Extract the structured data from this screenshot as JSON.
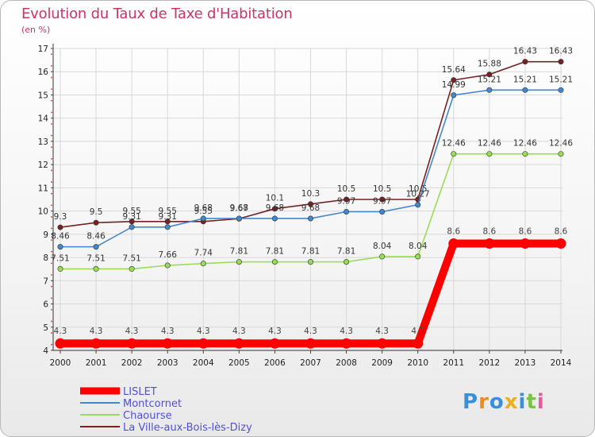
{
  "title": "Evolution du Taux de Taxe d'Habitation",
  "unit": "(en %)",
  "logo": "Proxiti",
  "chart_data": {
    "type": "line",
    "x": [
      "2000",
      "2001",
      "2002",
      "2003",
      "2004",
      "2005",
      "2006",
      "2007",
      "2008",
      "2009",
      "2010",
      "2011",
      "2012",
      "2013",
      "2014"
    ],
    "ylim": [
      4,
      17
    ],
    "yticks": [
      4,
      5,
      6,
      7,
      8,
      9,
      10,
      11,
      12,
      13,
      14,
      15,
      16,
      17
    ],
    "grid": true,
    "legend_position": "bottom-left",
    "series": [
      {
        "name": "LISLET",
        "color": "#ff0000",
        "values": [
          4.3,
          4.3,
          4.3,
          4.3,
          4.3,
          4.3,
          4.3,
          4.3,
          4.3,
          4.3,
          4.3,
          8.6,
          8.6,
          8.6,
          8.6
        ],
        "labels": [
          "4.3",
          "4.3",
          "4.3",
          "4.3",
          "4.3",
          "4.3",
          "4.3",
          "4.3",
          "4.3",
          "4.3",
          "4.3",
          "8.6",
          "8.6",
          "8.6",
          "8.6"
        ]
      },
      {
        "name": "Montcornet",
        "color": "#4488cc",
        "values": [
          8.46,
          8.46,
          9.31,
          9.31,
          9.68,
          9.68,
          9.68,
          9.68,
          9.97,
          9.97,
          10.27,
          14.99,
          15.21,
          15.21,
          15.21
        ],
        "labels": [
          "8.46",
          "8.46",
          "9.31",
          "9.31",
          "9.68",
          "9.68",
          "9.68",
          "9.68",
          "9.97",
          "9.97",
          "10.27",
          "14.99",
          "15.21",
          "15.21",
          "15.21"
        ]
      },
      {
        "name": "Chaourse",
        "color": "#99dd55",
        "values": [
          7.51,
          7.51,
          7.51,
          7.66,
          7.74,
          7.81,
          7.81,
          7.81,
          7.81,
          8.04,
          8.04,
          12.46,
          12.46,
          12.46,
          12.46
        ],
        "labels": [
          "7.51",
          "7.51",
          "7.51",
          "7.66",
          "7.74",
          "7.81",
          "7.81",
          "7.81",
          "7.81",
          "8.04",
          "8.04",
          "12.46",
          "12.46",
          "12.46",
          "12.46"
        ]
      },
      {
        "name": "La Ville-aux-Bois-lès-Dizy",
        "color": "#772222",
        "values": [
          9.3,
          9.5,
          9.55,
          9.55,
          9.55,
          9.67,
          10.1,
          10.3,
          10.5,
          10.5,
          10.5,
          15.64,
          15.88,
          16.43,
          16.43
        ],
        "labels": [
          "9.3",
          "9.5",
          "9.55",
          "9.55",
          "9.55",
          "9.67",
          "10.1",
          "10.3",
          "10.5",
          "10.5",
          "10.5",
          "15.64",
          "15.88",
          "16.43",
          "16.43"
        ]
      }
    ]
  }
}
